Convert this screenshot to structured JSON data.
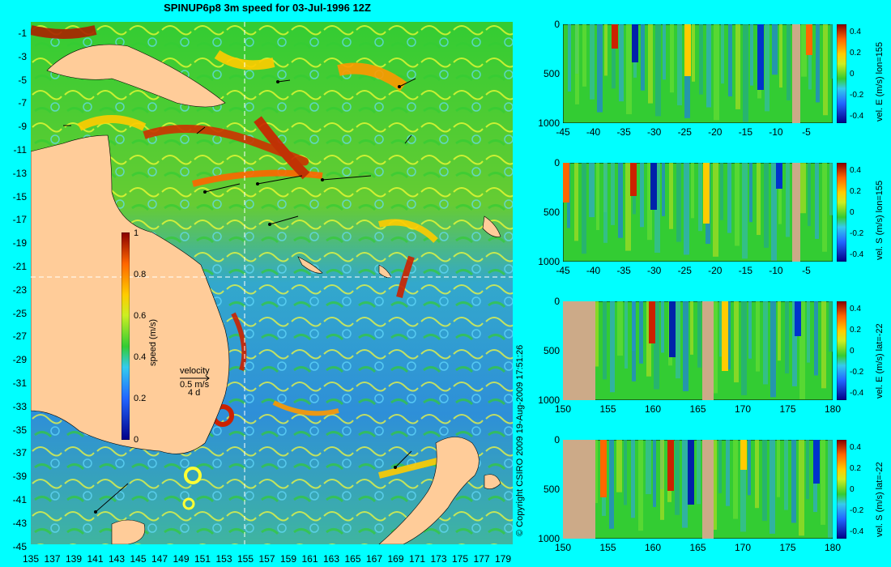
{
  "title": "SPINUP6p8 3m speed for 03-Jul-1996 12Z",
  "map": {
    "lon_ticks": [
      "135",
      "137",
      "139",
      "141",
      "143",
      "145",
      "147",
      "149",
      "151",
      "153",
      "155",
      "157",
      "159",
      "161",
      "163",
      "165",
      "167",
      "169",
      "171",
      "173",
      "175",
      "177",
      "179"
    ],
    "lat_ticks": [
      "-1",
      "-3",
      "-5",
      "-7",
      "-9",
      "-11",
      "-13",
      "-15",
      "-17",
      "-19",
      "-21",
      "-23",
      "-25",
      "-27",
      "-29",
      "-31",
      "-33",
      "-35",
      "-37",
      "-39",
      "-41",
      "-43",
      "-45"
    ],
    "colorbar": {
      "label": "speed (m/s)",
      "ticks": [
        "1",
        "0.8",
        "0.6",
        "0.4",
        "0.2",
        "0"
      ]
    },
    "velocity_key": {
      "title": "velocity",
      "value": "0.5 m/s",
      "extra": "4 d"
    },
    "colors": {
      "land": "#ffcc99",
      "background": "#00ffff"
    }
  },
  "sections": [
    {
      "label": "vel. E (m/s) lon=155",
      "xticks": [
        "-45",
        "-40",
        "-35",
        "-30",
        "-25",
        "-20",
        "-15",
        "-10",
        "-5"
      ],
      "yticks": [
        "0",
        "500",
        "1000"
      ],
      "cbticks": [
        "0.4",
        "0.2",
        "0",
        "-0.2",
        "-0.4"
      ]
    },
    {
      "label": "vel. S (m/s) lon=155",
      "xticks": [
        "-45",
        "-40",
        "-35",
        "-30",
        "-25",
        "-20",
        "-15",
        "-10",
        "-5"
      ],
      "yticks": [
        "0",
        "500",
        "1000"
      ],
      "cbticks": [
        "0.4",
        "0.2",
        "0",
        "-0.2",
        "-0.4"
      ]
    },
    {
      "label": "vel. E (m/s) lat=-22",
      "xticks": [
        "150",
        "155",
        "160",
        "165",
        "170",
        "175",
        "180"
      ],
      "yticks": [
        "0",
        "500",
        "1000"
      ],
      "cbticks": [
        "0.4",
        "0.2",
        "0",
        "-0.2",
        "-0.4"
      ]
    },
    {
      "label": "vel. S (m/s) lat=-22",
      "xticks": [
        "150",
        "155",
        "160",
        "165",
        "170",
        "175",
        "180"
      ],
      "yticks": [
        "0",
        "500",
        "1000"
      ],
      "cbticks": [
        "0.4",
        "0.2",
        "0",
        "-0.2",
        "-0.4"
      ]
    }
  ],
  "copyright": "© Copyright CSIRO 2009   19-Aug-2009 17:51:26"
}
